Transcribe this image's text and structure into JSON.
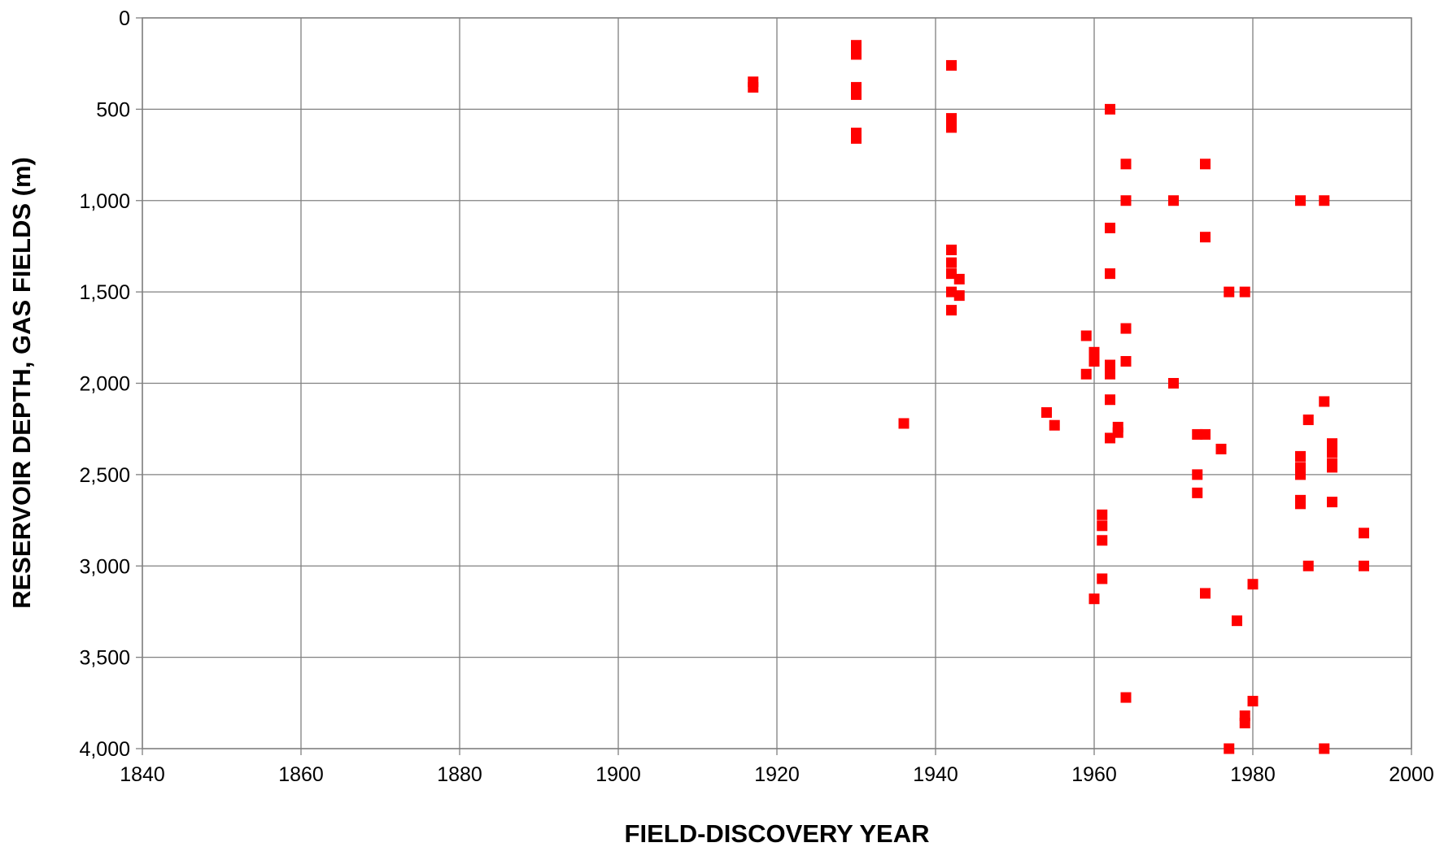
{
  "chart_data": {
    "type": "scatter",
    "title": "",
    "xlabel": "FIELD-DISCOVERY YEAR",
    "ylabel": "RESERVOIR DEPTH, GAS FIELDS (m)",
    "xlim": [
      1840,
      2000
    ],
    "ylim": [
      0,
      4000
    ],
    "y_inverted": true,
    "grid": true,
    "marker_color": "#ff0000",
    "x_ticks": [
      "1840",
      "1860",
      "1880",
      "1900",
      "1920",
      "1940",
      "1960",
      "1980",
      "2000"
    ],
    "y_ticks": [
      "0",
      "500",
      "1,000",
      "1,500",
      "2,000",
      "2,500",
      "3,000",
      "3,500",
      "4,000"
    ],
    "series": [
      {
        "marker": "square",
        "points": [
          [
            1917,
            350
          ],
          [
            1917,
            380
          ],
          [
            1930,
            150
          ],
          [
            1930,
            200
          ],
          [
            1930,
            380
          ],
          [
            1930,
            420
          ],
          [
            1930,
            630
          ],
          [
            1930,
            660
          ],
          [
            1936,
            2220
          ],
          [
            1942,
            260
          ],
          [
            1942,
            550
          ],
          [
            1942,
            600
          ],
          [
            1942,
            1270
          ],
          [
            1942,
            1340
          ],
          [
            1942,
            1400
          ],
          [
            1942,
            1500
          ],
          [
            1942,
            1600
          ],
          [
            1943,
            1430
          ],
          [
            1943,
            1520
          ],
          [
            1954,
            2160
          ],
          [
            1955,
            2230
          ],
          [
            1959,
            1740
          ],
          [
            1959,
            1950
          ],
          [
            1960,
            1830
          ],
          [
            1960,
            1880
          ],
          [
            1960,
            3180
          ],
          [
            1961,
            2720
          ],
          [
            1961,
            2780
          ],
          [
            1961,
            2860
          ],
          [
            1961,
            3070
          ],
          [
            1962,
            500
          ],
          [
            1962,
            1150
          ],
          [
            1962,
            1400
          ],
          [
            1962,
            1900
          ],
          [
            1962,
            1950
          ],
          [
            1962,
            2090
          ],
          [
            1962,
            2300
          ],
          [
            1963,
            2240
          ],
          [
            1963,
            2270
          ],
          [
            1964,
            800
          ],
          [
            1964,
            1000
          ],
          [
            1964,
            1700
          ],
          [
            1964,
            1880
          ],
          [
            1964,
            3720
          ],
          [
            1970,
            1000
          ],
          [
            1970,
            2000
          ],
          [
            1973,
            2280
          ],
          [
            1973,
            2500
          ],
          [
            1973,
            2600
          ],
          [
            1974,
            800
          ],
          [
            1974,
            1200
          ],
          [
            1974,
            2280
          ],
          [
            1974,
            3150
          ],
          [
            1976,
            2360
          ],
          [
            1977,
            1500
          ],
          [
            1977,
            4000
          ],
          [
            1978,
            3300
          ],
          [
            1979,
            1500
          ],
          [
            1979,
            3820
          ],
          [
            1979,
            3860
          ],
          [
            1980,
            3100
          ],
          [
            1980,
            3740
          ],
          [
            1986,
            1000
          ],
          [
            1986,
            2400
          ],
          [
            1986,
            2460
          ],
          [
            1986,
            2500
          ],
          [
            1986,
            2640
          ],
          [
            1986,
            2660
          ],
          [
            1987,
            2200
          ],
          [
            1987,
            3000
          ],
          [
            1989,
            1000
          ],
          [
            1989,
            2100
          ],
          [
            1989,
            4000
          ],
          [
            1990,
            2330
          ],
          [
            1990,
            2380
          ],
          [
            1990,
            2440
          ],
          [
            1990,
            2460
          ],
          [
            1990,
            2650
          ],
          [
            1994,
            2820
          ],
          [
            1994,
            3000
          ]
        ]
      }
    ]
  }
}
